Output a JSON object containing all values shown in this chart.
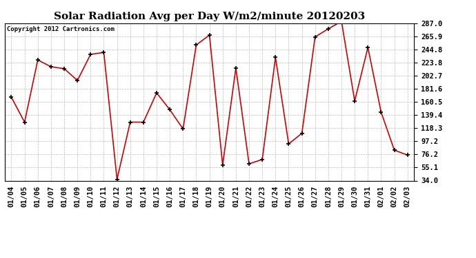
{
  "title": "Solar Radiation Avg per Day W/m2/minute 20120203",
  "copyright": "Copyright 2012 Cartronics.com",
  "labels": [
    "01/04",
    "01/05",
    "01/06",
    "01/07",
    "01/08",
    "01/09",
    "01/10",
    "01/11",
    "01/12",
    "01/13",
    "01/14",
    "01/15",
    "01/16",
    "01/17",
    "01/18",
    "01/19",
    "01/20",
    "01/21",
    "01/22",
    "01/23",
    "01/24",
    "01/25",
    "01/26",
    "01/27",
    "01/28",
    "01/29",
    "01/30",
    "01/31",
    "02/01",
    "02/02",
    "02/03"
  ],
  "values": [
    168,
    128,
    228,
    217,
    214,
    195,
    237,
    240,
    36,
    128,
    128,
    175,
    148,
    117,
    252,
    268,
    59,
    215,
    61,
    68,
    232,
    93,
    110,
    265,
    278,
    290,
    162,
    248,
    144,
    83,
    75
  ],
  "line_color": "#cc0000",
  "marker_color": "#000000",
  "background_color": "#ffffff",
  "plot_bg_color": "#ffffff",
  "grid_color": "#bbbbbb",
  "yticks": [
    34.0,
    55.1,
    76.2,
    97.2,
    118.3,
    139.4,
    160.5,
    181.6,
    202.7,
    223.8,
    244.8,
    265.9,
    287.0
  ],
  "ylim": [
    34.0,
    287.0
  ],
  "title_fontsize": 11,
  "tick_fontsize": 7.5,
  "copyright_fontsize": 6.5
}
